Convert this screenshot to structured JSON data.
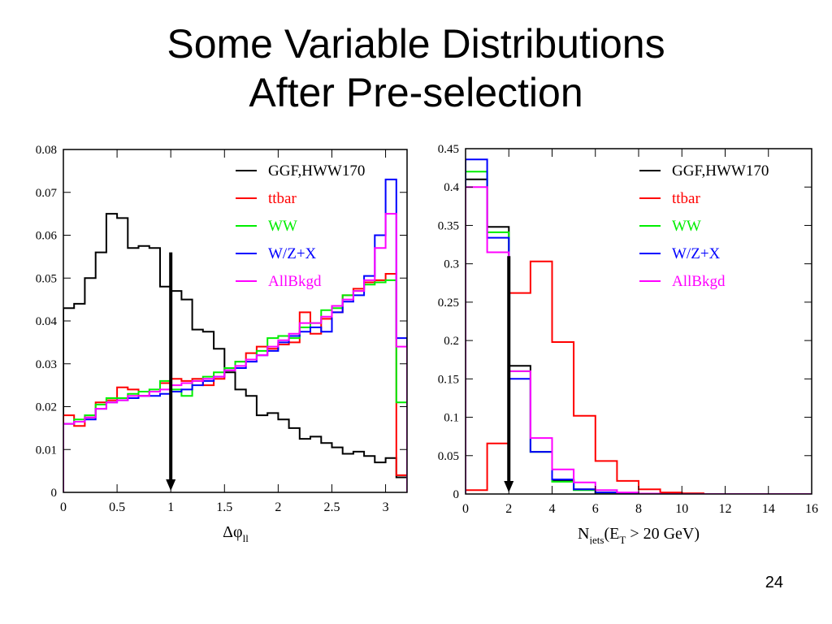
{
  "title": {
    "line1": "Some Variable Distributions",
    "line2": "After Pre-selection"
  },
  "page_number": "24",
  "chart_data": [
    {
      "type": "line",
      "step": true,
      "xlabel_main": "Δφ",
      "xlabel_sub": "ll",
      "xlim": [
        0,
        3.2
      ],
      "ylim": [
        0,
        0.08
      ],
      "xticks": [
        0,
        0.5,
        1,
        1.5,
        2,
        2.5,
        3
      ],
      "xtick_labels": [
        "0",
        "0.5",
        "1",
        "1.5",
        "2",
        "2.5",
        "3"
      ],
      "yticks": [
        0,
        0.01,
        0.02,
        0.03,
        0.04,
        0.05,
        0.06,
        0.07,
        0.08
      ],
      "ytick_labels": [
        "0",
        "0.01",
        "0.02",
        "0.03",
        "0.04",
        "0.05",
        "0.06",
        "0.07",
        "0.08"
      ],
      "bin_width": 0.1,
      "arrow_x": 1.0,
      "arrow_top_y": 0.056,
      "legend_placement": "top-right",
      "series": [
        {
          "name": "GGF,HWW170",
          "color": "#000000",
          "values": [
            0.043,
            0.044,
            0.05,
            0.056,
            0.065,
            0.064,
            0.057,
            0.0575,
            0.057,
            0.048,
            0.047,
            0.045,
            0.038,
            0.0375,
            0.0335,
            0.028,
            0.024,
            0.0225,
            0.018,
            0.0185,
            0.017,
            0.015,
            0.0125,
            0.013,
            0.0115,
            0.0105,
            0.009,
            0.0095,
            0.0085,
            0.007,
            0.008,
            0.0035
          ]
        },
        {
          "name": "ttbar",
          "color": "#ff0000",
          "values": [
            0.018,
            0.0155,
            0.0175,
            0.021,
            0.0215,
            0.0245,
            0.024,
            0.0225,
            0.0235,
            0.0255,
            0.0265,
            0.026,
            0.0265,
            0.025,
            0.0265,
            0.0285,
            0.0305,
            0.0325,
            0.034,
            0.0335,
            0.0345,
            0.035,
            0.042,
            0.037,
            0.0405,
            0.042,
            0.046,
            0.0475,
            0.049,
            0.0495,
            0.051,
            0.004
          ]
        },
        {
          "name": "WW",
          "color": "#00ee00",
          "values": [
            0.016,
            0.017,
            0.018,
            0.0205,
            0.022,
            0.022,
            0.023,
            0.0235,
            0.024,
            0.026,
            0.024,
            0.0225,
            0.026,
            0.027,
            0.028,
            0.029,
            0.0305,
            0.031,
            0.033,
            0.036,
            0.0365,
            0.036,
            0.0385,
            0.0395,
            0.0425,
            0.043,
            0.046,
            0.047,
            0.0485,
            0.049,
            0.0495,
            0.021
          ]
        },
        {
          "name": "W/Z+X",
          "color": "#0000ff",
          "values": [
            0.016,
            0.0165,
            0.017,
            0.0195,
            0.021,
            0.0215,
            0.022,
            0.0225,
            0.0225,
            0.023,
            0.0235,
            0.024,
            0.025,
            0.026,
            0.027,
            0.0285,
            0.029,
            0.0305,
            0.032,
            0.033,
            0.035,
            0.0365,
            0.0375,
            0.0385,
            0.0375,
            0.042,
            0.0445,
            0.046,
            0.0505,
            0.06,
            0.073,
            0.036
          ]
        },
        {
          "name": "AllBkgd",
          "color": "#ff00ff",
          "values": [
            0.016,
            0.0165,
            0.0175,
            0.0195,
            0.021,
            0.0215,
            0.0225,
            0.0225,
            0.0235,
            0.024,
            0.025,
            0.0255,
            0.026,
            0.0265,
            0.027,
            0.0285,
            0.0295,
            0.031,
            0.032,
            0.034,
            0.0355,
            0.037,
            0.0395,
            0.0395,
            0.041,
            0.0435,
            0.045,
            0.047,
            0.0495,
            0.057,
            0.065,
            0.034
          ]
        }
      ]
    },
    {
      "type": "line",
      "step": true,
      "xlabel_main": "N",
      "xlabel_sub": "jets",
      "xlabel_rest": "(E",
      "xlabel_sub2": "T",
      "xlabel_end": " > 20 GeV)",
      "xlim": [
        0,
        16
      ],
      "ylim": [
        0,
        0.45
      ],
      "xticks": [
        0,
        2,
        4,
        6,
        8,
        10,
        12,
        14,
        16
      ],
      "xtick_labels": [
        "0",
        "2",
        "4",
        "6",
        "8",
        "10",
        "12",
        "14",
        "16"
      ],
      "yticks": [
        0,
        0.05,
        0.1,
        0.15,
        0.2,
        0.25,
        0.3,
        0.35,
        0.4,
        0.45
      ],
      "ytick_labels": [
        "0",
        "0.05",
        "0.1",
        "0.15",
        "0.2",
        "0.25",
        "0.3",
        "0.35",
        "0.4",
        "0.45"
      ],
      "bin_width": 1,
      "arrow_x": 2.0,
      "arrow_top_y": 0.31,
      "legend_placement": "top-right",
      "series": [
        {
          "name": "GGF,HWW170",
          "color": "#000000",
          "values": [
            0.41,
            0.348,
            0.167,
            0.055,
            0.018,
            0.006,
            0.002,
            0.0005,
            0,
            0,
            0,
            0,
            0,
            0,
            0,
            0
          ]
        },
        {
          "name": "ttbar",
          "color": "#ff0000",
          "values": [
            0.005,
            0.066,
            0.262,
            0.303,
            0.198,
            0.102,
            0.043,
            0.017,
            0.006,
            0.002,
            0.001,
            0,
            0,
            0,
            0,
            0
          ]
        },
        {
          "name": "WW",
          "color": "#00ee00",
          "values": [
            0.42,
            0.341,
            0.16,
            0.055,
            0.016,
            0.005,
            0.0015,
            0.0005,
            0,
            0,
            0,
            0,
            0,
            0,
            0,
            0
          ]
        },
        {
          "name": "W/Z+X",
          "color": "#0000ff",
          "values": [
            0.436,
            0.334,
            0.15,
            0.055,
            0.019,
            0.006,
            0.002,
            0.0005,
            0,
            0,
            0,
            0,
            0,
            0,
            0,
            0
          ]
        },
        {
          "name": "AllBkgd",
          "color": "#ff00ff",
          "values": [
            0.4,
            0.315,
            0.16,
            0.073,
            0.032,
            0.015,
            0.005,
            0.002,
            0.0005,
            0,
            0,
            0,
            0,
            0,
            0,
            0
          ]
        }
      ]
    }
  ]
}
